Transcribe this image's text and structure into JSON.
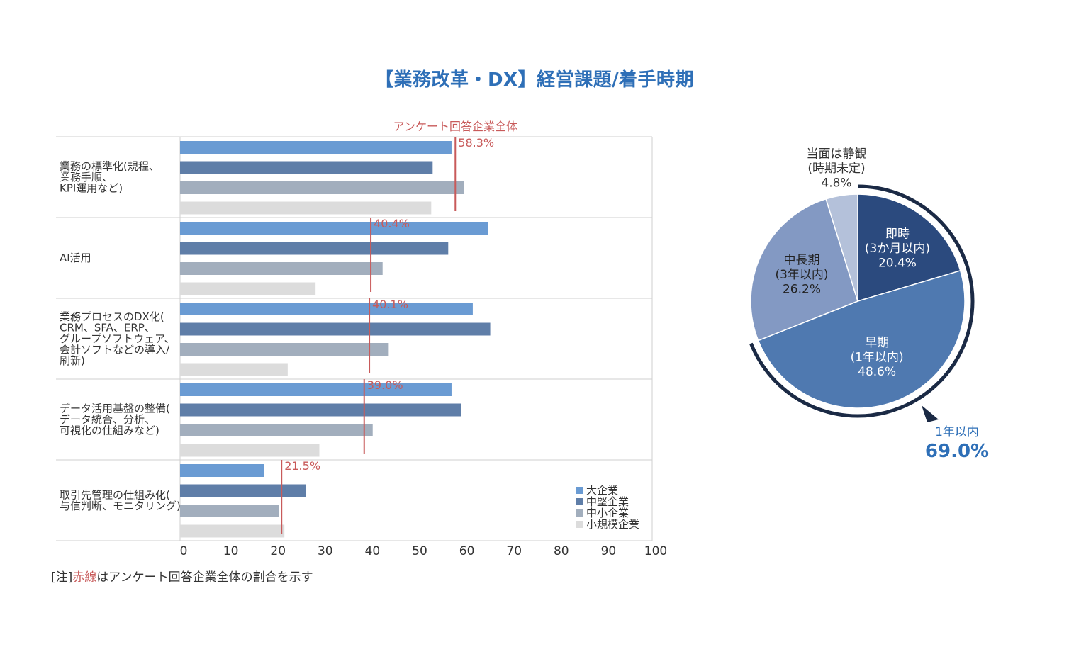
{
  "title": "【業務改革・DX】経営課題/着手時期",
  "note": {
    "prefix": "[注]",
    "red": "赤線",
    "suffix": "はアンケート回答企業全体の割合を示す"
  },
  "chart_data": [
    {
      "type": "bar",
      "orientation": "horizontal",
      "title": "",
      "reference_line_label": "アンケート回答企業全体",
      "categories": [
        {
          "lines": [
            "業務の標準化(規程、",
            "業務手順、",
            "KPI運用など)"
          ]
        },
        {
          "lines": [
            "AI活用"
          ]
        },
        {
          "lines": [
            "業務プロセスのDX化(",
            "CRM、SFA、ERP、",
            "グループソフトウェア、",
            "会計ソフトなどの導入/",
            "刷新)"
          ]
        },
        {
          "lines": [
            "データ活用基盤の整備(",
            "データ統合、分析、",
            "可視化の仕組みなど)"
          ]
        },
        {
          "lines": [
            "取引先管理の仕組み化(",
            "与信判断、モニタリング)"
          ]
        }
      ],
      "series": [
        {
          "name": "大企業",
          "color": "#6a9bd3",
          "values": [
            57.5,
            65.3,
            62.0,
            57.5,
            17.8
          ]
        },
        {
          "name": "中堅企業",
          "color": "#5f7ea8",
          "values": [
            53.5,
            56.8,
            65.7,
            59.6,
            26.6
          ]
        },
        {
          "name": "中小企業",
          "color": "#a2aebd",
          "values": [
            60.2,
            42.9,
            44.2,
            40.8,
            21.0
          ]
        },
        {
          "name": "小規模企業",
          "color": "#dcdcdc",
          "values": [
            53.2,
            28.7,
            22.8,
            29.5,
            22.1
          ]
        }
      ],
      "overall": [
        58.3,
        40.4,
        40.1,
        39.0,
        21.5
      ],
      "overall_labels": [
        "58.3%",
        "40.4%",
        "40.1%",
        "39.0%",
        "21.5%"
      ],
      "overall_color": "#c85a5a",
      "xlim": [
        0,
        100
      ],
      "xticks": [
        0,
        10,
        20,
        30,
        40,
        50,
        60,
        70,
        80,
        90,
        100
      ],
      "legend_position": "bottom-right"
    },
    {
      "type": "pie",
      "slices": [
        {
          "name": "即時",
          "lines": [
            "即時",
            "(3か月以内)",
            "20.4%"
          ],
          "value": 20.4,
          "color": "#2b4a7e",
          "text_color": "#ffffff"
        },
        {
          "name": "早期",
          "lines": [
            "早期",
            "(1年以内)",
            "48.6%"
          ],
          "value": 48.6,
          "color": "#4f79b0",
          "text_color": "#ffffff"
        },
        {
          "name": "中長期",
          "lines": [
            "中長期",
            "(3年以内)",
            "26.2%"
          ],
          "value": 26.2,
          "color": "#8399c3",
          "text_color": "#222222"
        },
        {
          "name": "当面は静観",
          "lines": [
            "当面は静観",
            "(時期未定)",
            "4.8%"
          ],
          "value": 4.8,
          "color": "#b4c1da",
          "text_color": "#333333"
        }
      ],
      "summary": {
        "label": "1年以内",
        "value": "69.0%",
        "color": "#2e6fb7"
      },
      "arc_color": "#1b2a45"
    }
  ]
}
